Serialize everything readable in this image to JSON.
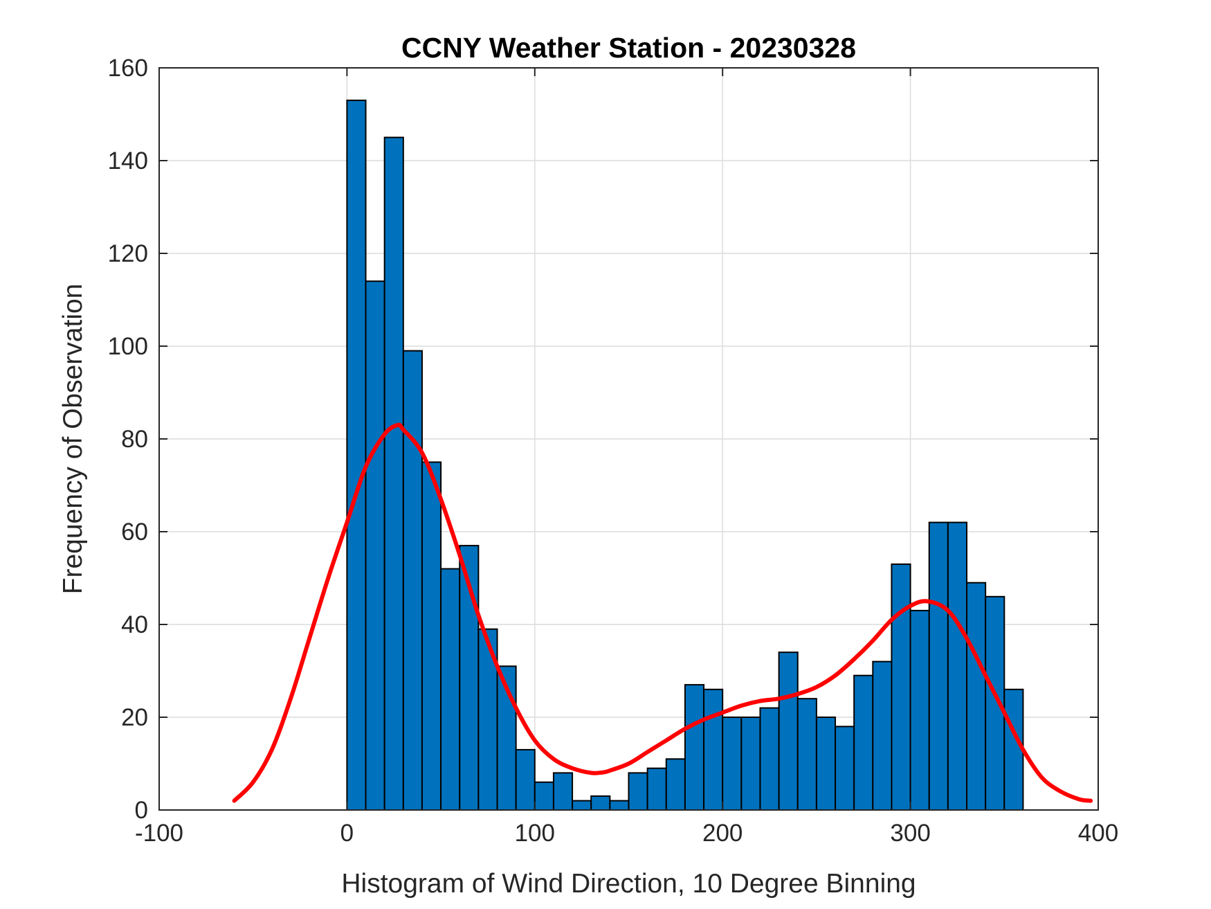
{
  "chart_data": {
    "type": "bar",
    "title": "CCNY Weather Station - 20230328",
    "xlabel": "Histogram of Wind Direction, 10 Degree Binning",
    "ylabel": "Frequency of Observation",
    "xlim": [
      -100,
      400
    ],
    "ylim": [
      0,
      160
    ],
    "xticks": [
      -100,
      0,
      100,
      200,
      300,
      400
    ],
    "yticks": [
      0,
      20,
      40,
      60,
      80,
      100,
      120,
      140,
      160
    ],
    "grid": true,
    "bin_width": 10,
    "bin_start": 0,
    "bar_color": "#0072BD",
    "bar_edge_color": "#000000",
    "series": [
      {
        "type": "histogram",
        "bin_edges_start": [
          0,
          10,
          20,
          30,
          40,
          50,
          60,
          70,
          80,
          90,
          100,
          110,
          120,
          130,
          140,
          150,
          160,
          170,
          180,
          190,
          200,
          210,
          220,
          230,
          240,
          250,
          260,
          270,
          280,
          290,
          300,
          310,
          320,
          330,
          340,
          350
        ],
        "values": [
          153,
          114,
          145,
          99,
          75,
          52,
          57,
          39,
          31,
          13,
          6,
          8,
          2,
          3,
          2,
          8,
          9,
          11,
          27,
          26,
          20,
          20,
          22,
          34,
          24,
          20,
          18,
          29,
          32,
          53,
          43,
          62,
          62,
          49,
          46,
          26
        ]
      },
      {
        "type": "line",
        "color": "#FF0000",
        "x": [
          -60,
          -50,
          -40,
          -30,
          -20,
          -10,
          0,
          10,
          20,
          27,
          30,
          40,
          50,
          60,
          70,
          80,
          90,
          100,
          110,
          120,
          130,
          136,
          140,
          150,
          160,
          170,
          180,
          190,
          200,
          210,
          220,
          230,
          240,
          250,
          260,
          270,
          280,
          290,
          300,
          309,
          320,
          330,
          340,
          350,
          360,
          370,
          380,
          390,
          396
        ],
        "y": [
          2,
          6,
          13,
          24,
          37,
          50,
          62,
          74,
          81,
          83,
          82,
          77,
          67,
          55,
          42,
          31,
          22,
          15,
          11,
          9,
          8,
          8.1,
          8.5,
          10,
          12.5,
          15,
          17.5,
          19.5,
          21,
          22.5,
          23.5,
          24,
          25,
          26.5,
          29,
          32.5,
          36.5,
          41,
          44,
          45,
          43,
          37,
          29,
          21,
          13,
          7,
          4,
          2.3,
          2
        ]
      }
    ]
  }
}
